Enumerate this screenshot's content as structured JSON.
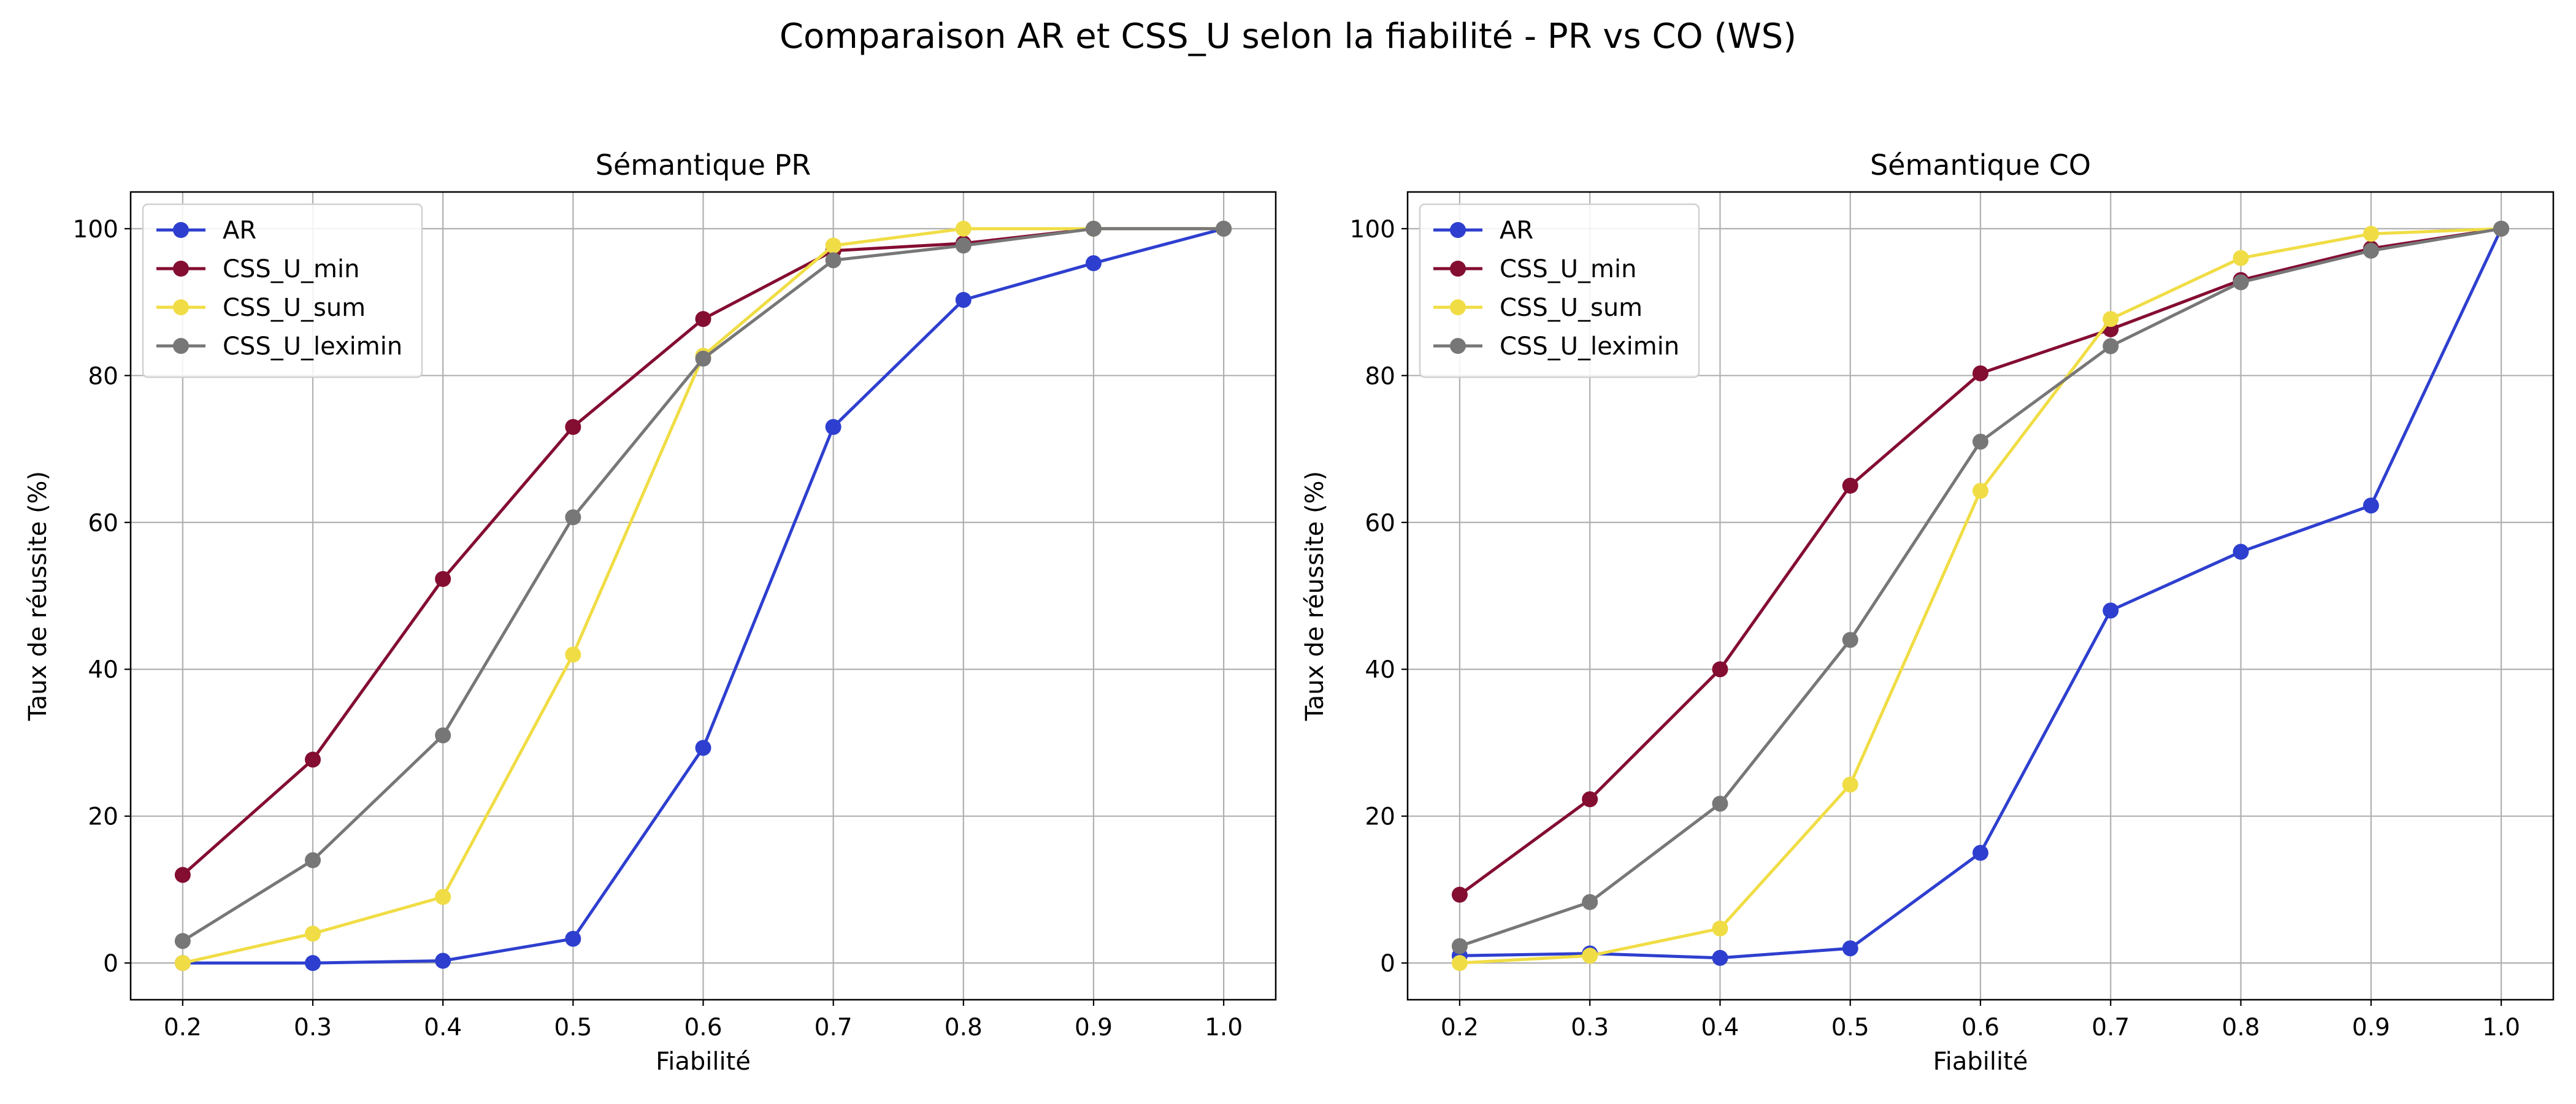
{
  "figure": {
    "title": "Comparaison AR et CSS_U selon la fiabilité - PR vs CO (WS)"
  },
  "chart_data": [
    {
      "type": "line",
      "title": "Sémantique PR",
      "xlabel": "Fiabilité",
      "ylabel": "Taux de réussite (%)",
      "x": [
        0.2,
        0.3,
        0.4,
        0.5,
        0.6,
        0.7,
        0.8,
        0.9,
        1.0
      ],
      "xlim": [
        0.16,
        1.04
      ],
      "ylim": [
        -5,
        105
      ],
      "xticks": [
        "0.2",
        "0.3",
        "0.4",
        "0.5",
        "0.6",
        "0.7",
        "0.8",
        "0.9",
        "1.0"
      ],
      "yticks": [
        "0",
        "20",
        "40",
        "60",
        "80",
        "100"
      ],
      "grid": true,
      "legend": "upper left",
      "series": [
        {
          "name": "AR",
          "color": "#2e3fcf",
          "values": [
            0,
            0,
            0.3,
            3.3,
            29.3,
            73,
            90.3,
            95.3,
            100
          ]
        },
        {
          "name": "CSS_U_min",
          "color": "#840d32",
          "values": [
            12,
            27.7,
            52.3,
            73,
            87.7,
            97,
            98,
            100,
            100
          ]
        },
        {
          "name": "CSS_U_sum",
          "color": "#f0dd45",
          "values": [
            0,
            4,
            9,
            42,
            82.7,
            97.7,
            100,
            100,
            100
          ]
        },
        {
          "name": "CSS_U_leximin",
          "color": "#777777",
          "values": [
            3,
            14,
            31,
            60.7,
            82.3,
            95.7,
            97.7,
            100,
            100
          ]
        }
      ]
    },
    {
      "type": "line",
      "title": "Sémantique CO",
      "xlabel": "Fiabilité",
      "ylabel": "Taux de réussite (%)",
      "x": [
        0.2,
        0.3,
        0.4,
        0.5,
        0.6,
        0.7,
        0.8,
        0.9,
        1.0
      ],
      "xlim": [
        0.16,
        1.04
      ],
      "ylim": [
        -5,
        105
      ],
      "xticks": [
        "0.2",
        "0.3",
        "0.4",
        "0.5",
        "0.6",
        "0.7",
        "0.8",
        "0.9",
        "1.0"
      ],
      "yticks": [
        "0",
        "20",
        "40",
        "60",
        "80",
        "100"
      ],
      "grid": true,
      "legend": "upper left",
      "series": [
        {
          "name": "AR",
          "color": "#2e3fcf",
          "values": [
            1,
            1.3,
            0.7,
            2,
            15,
            48,
            56,
            62.3,
            100
          ]
        },
        {
          "name": "CSS_U_min",
          "color": "#840d32",
          "values": [
            9.3,
            22.3,
            40,
            65,
            80.3,
            86.3,
            93,
            97.3,
            100
          ]
        },
        {
          "name": "CSS_U_sum",
          "color": "#f0dd45",
          "values": [
            0,
            1,
            4.7,
            24.3,
            64.3,
            87.7,
            96,
            99.3,
            100
          ]
        },
        {
          "name": "CSS_U_leximin",
          "color": "#777777",
          "values": [
            2.3,
            8.3,
            21.7,
            44,
            71,
            84,
            92.7,
            97,
            100
          ]
        }
      ]
    }
  ]
}
